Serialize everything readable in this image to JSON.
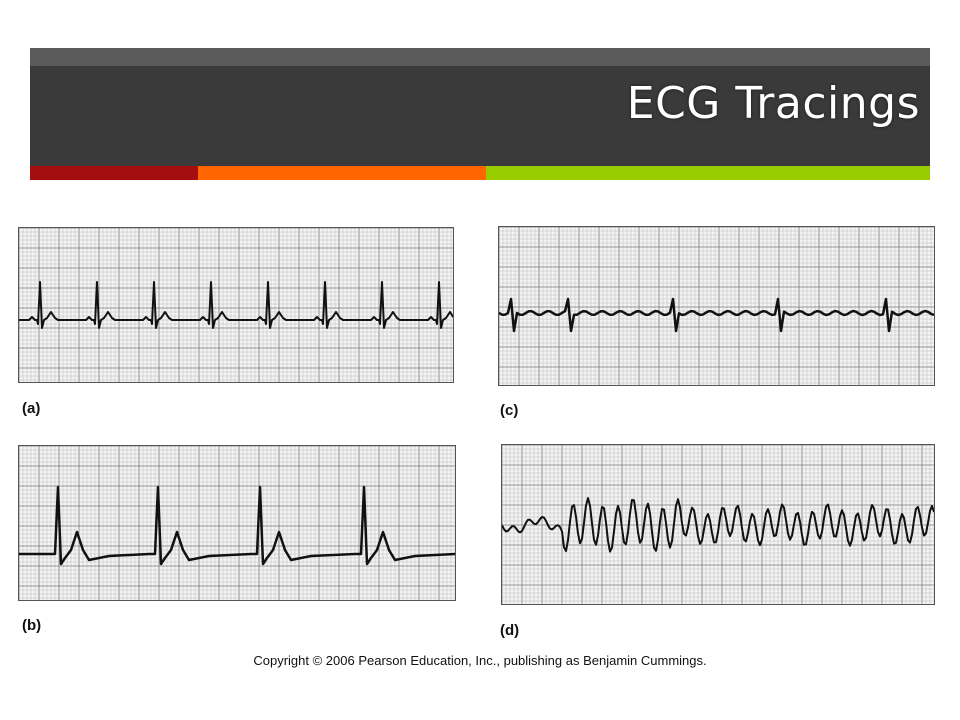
{
  "slide": {
    "title": "ECG Tracings",
    "accent_colors": [
      "#a50e0e",
      "#ff6600",
      "#99cc00"
    ],
    "copyright": "Copyright © 2006 Pearson Education, Inc., publishing as Benjamin Cummings."
  },
  "panels": [
    {
      "label": "(a)"
    },
    {
      "label": "(b)"
    },
    {
      "label": "(c)"
    },
    {
      "label": "(d)"
    }
  ]
}
